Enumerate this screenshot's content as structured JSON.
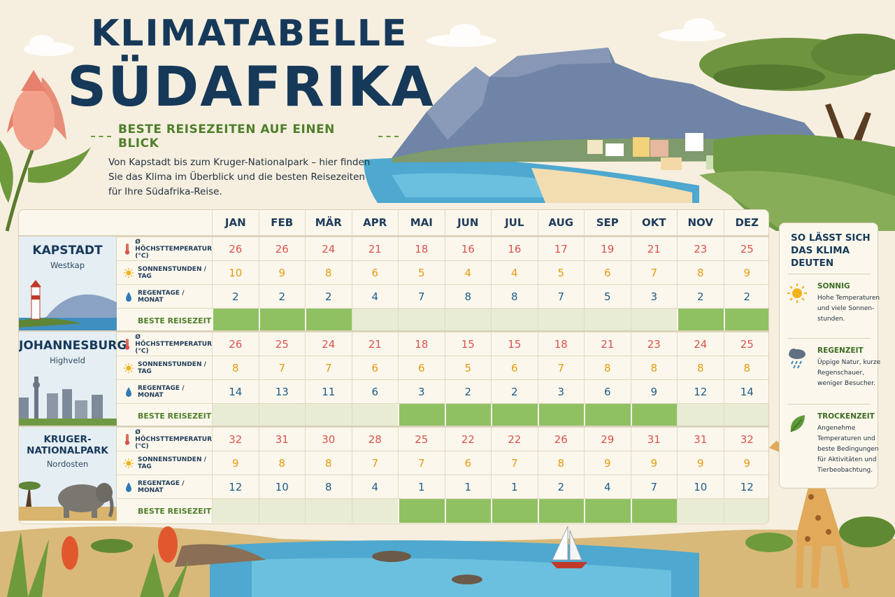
{
  "header": {
    "title_line1": "KLIMATABELLE",
    "title_line2": "SÜDAFRIKA",
    "subtitle": "BESTE REISEZEITEN AUF EINEN BLICK",
    "intro": "Von Kapstadt bis zum Kruger-Nationalpark – hier finden Sie das Klima im Überblick und die besten Reisezeiten für Ihre Südafrika-Reise."
  },
  "months": [
    "JAN",
    "FEB",
    "MÄR",
    "APR",
    "MAI",
    "JUN",
    "JUL",
    "AUG",
    "SEP",
    "OKT",
    "NOV",
    "DEZ"
  ],
  "row_labels": {
    "temp": "Ø HÖCHSTTEMPERATUR (°C)",
    "sun": "SONNENSTUNDEN / TAG",
    "rain": "REGENTAGE / MONAT",
    "best": "BESTE REISEZEIT"
  },
  "cities": [
    {
      "name": "KAPSTADT",
      "region": "Westkap",
      "temp": [
        26,
        26,
        24,
        21,
        18,
        16,
        16,
        17,
        19,
        21,
        23,
        25
      ],
      "sun": [
        10,
        9,
        8,
        6,
        5,
        4,
        4,
        5,
        6,
        7,
        8,
        9
      ],
      "rain": [
        2,
        2,
        2,
        4,
        7,
        8,
        8,
        7,
        5,
        3,
        2,
        2
      ],
      "best": [
        1,
        1,
        1,
        0,
        0,
        0,
        0,
        0,
        0,
        0,
        1,
        1
      ]
    },
    {
      "name": "JOHANNESBURG",
      "region": "Highveld",
      "temp": [
        26,
        25,
        24,
        21,
        18,
        15,
        15,
        18,
        21,
        23,
        24,
        25
      ],
      "sun": [
        8,
        7,
        7,
        6,
        6,
        5,
        6,
        7,
        8,
        8,
        8,
        8
      ],
      "rain": [
        14,
        13,
        11,
        6,
        3,
        2,
        2,
        3,
        6,
        9,
        12,
        14
      ],
      "best": [
        0,
        0,
        0,
        0,
        1,
        1,
        1,
        1,
        1,
        1,
        0,
        0
      ]
    },
    {
      "name": "KRUGER-NATIONALPARK",
      "region": "Nordosten",
      "temp": [
        32,
        31,
        30,
        28,
        25,
        22,
        22,
        26,
        29,
        31,
        31,
        32
      ],
      "sun": [
        9,
        8,
        8,
        7,
        7,
        6,
        7,
        8,
        9,
        9,
        9,
        9
      ],
      "rain": [
        12,
        10,
        8,
        4,
        1,
        1,
        1,
        2,
        4,
        7,
        10,
        12
      ],
      "best": [
        0,
        0,
        0,
        0,
        1,
        1,
        1,
        1,
        1,
        1,
        0,
        0
      ]
    }
  ],
  "legend": {
    "title": "SO LÄSST SICH DAS KLIMA DEUTEN",
    "items": [
      {
        "head": "SONNIG",
        "text": "Hohe Temperaturen und viele Sonnen-stunden.",
        "icon": "sun-icon"
      },
      {
        "head": "REGENZEIT",
        "text": "Üppige Natur, kurze Regenschauer, weniger Besucher.",
        "icon": "rain-cloud-icon"
      },
      {
        "head": "TROCKENZEIT",
        "text": "Angenehme Temperaturen und beste Bedingungen für Aktivitäten und Tierbeobachtung.",
        "icon": "leaf-icon"
      }
    ]
  },
  "colors": {
    "navy": "#16395a",
    "temp": "#d9534f",
    "sun": "#e69a12",
    "rain": "#1d5c8a",
    "best_on": "#8fc163",
    "best_off": "#e8ecd4",
    "green_text": "#4f7f2b"
  }
}
